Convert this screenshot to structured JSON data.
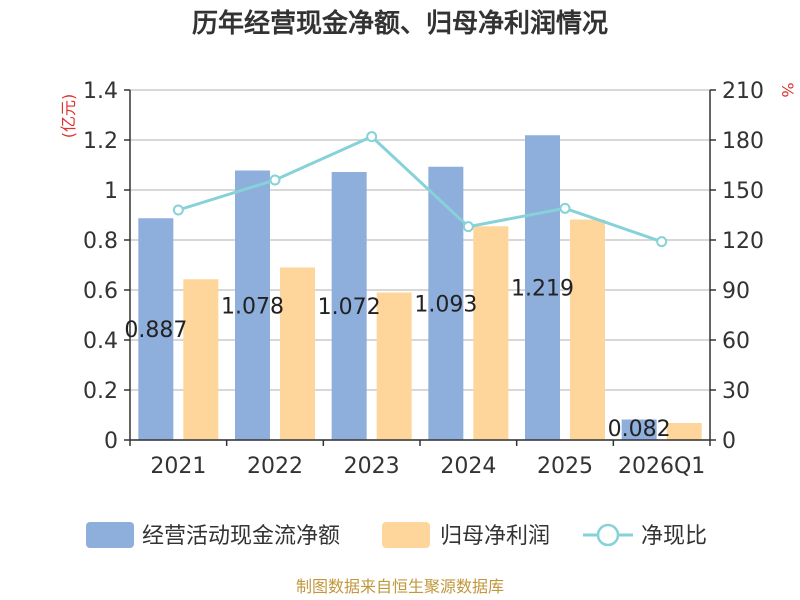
{
  "colors": {
    "bar1": "#8eaedc",
    "bar2": "#fed69b",
    "line": "#86d2d8",
    "grid": "#cccccc",
    "axis": "#333333",
    "unit": "#e03030",
    "source": "#c0983c"
  },
  "chart_data": {
    "type": "bar",
    "title": "历年经营现金净额、归母净利润情况",
    "categories": [
      "2021",
      "2022",
      "2023",
      "2024",
      "2025",
      "2026Q1"
    ],
    "series": [
      {
        "name": "经营活动现金流净额",
        "type": "bar",
        "axis": "left",
        "values": [
          0.887,
          1.078,
          1.072,
          1.093,
          1.219,
          0.082
        ],
        "labels": [
          "0.887",
          "1.078",
          "1.072",
          "1.093",
          "1.219",
          "0.082"
        ]
      },
      {
        "name": "归母净利润",
        "type": "bar",
        "axis": "left",
        "values": [
          0.643,
          0.69,
          0.59,
          0.855,
          0.882,
          0.068
        ]
      },
      {
        "name": "净现比",
        "type": "line",
        "axis": "right",
        "values": [
          138,
          156,
          182,
          128,
          139,
          119
        ]
      }
    ],
    "y_left": {
      "unit": "(亿元)",
      "min": 0,
      "max": 1.4,
      "ticks": [
        "0",
        "0.2",
        "0.4",
        "0.6",
        "0.8",
        "1",
        "1.2",
        "1.4"
      ]
    },
    "y_right": {
      "unit": "%",
      "min": 0,
      "max": 210,
      "ticks": [
        "0",
        "30",
        "60",
        "90",
        "120",
        "150",
        "180",
        "210"
      ]
    },
    "legend": [
      "经营活动现金流净额",
      "归母净利润",
      "净现比"
    ],
    "source": "制图数据来自恒生聚源数据库"
  }
}
